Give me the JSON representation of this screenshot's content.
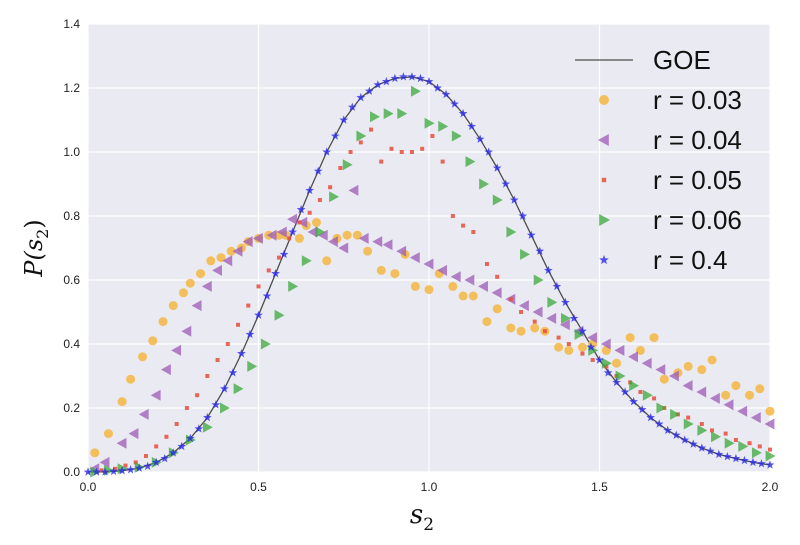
{
  "chart_data": {
    "type": "scatter",
    "xlabel_main": "s",
    "xlabel_sub": "2",
    "ylabel_main": "P(s",
    "ylabel_sub": "2",
    "ylabel_close": ")",
    "xlim": [
      0.0,
      2.0
    ],
    "ylim": [
      0.0,
      1.4
    ],
    "xticks": [
      "0.0",
      "0.5",
      "1.0",
      "1.5",
      "2.0"
    ],
    "yticks": [
      "0.0",
      "0.2",
      "0.4",
      "0.6",
      "0.8",
      "1.0",
      "1.2",
      "1.4"
    ],
    "grid": true,
    "legend_position": "top-right",
    "colors": {
      "background": "#eaeaf2",
      "grid": "#ffffff",
      "GOE": "#4d4d4d",
      "r003": "#f5b642",
      "r004": "#9b59b6",
      "r005": "#e74c3c",
      "r006": "#3aa83a",
      "r04": "#2a2ae8"
    },
    "series": [
      {
        "name": "GOE",
        "kind": "line",
        "color_key": "GOE",
        "x": [
          0.0,
          0.05,
          0.1,
          0.15,
          0.2,
          0.25,
          0.3,
          0.35,
          0.4,
          0.45,
          0.5,
          0.55,
          0.6,
          0.65,
          0.7,
          0.75,
          0.8,
          0.85,
          0.9,
          0.95,
          1.0,
          1.05,
          1.1,
          1.15,
          1.2,
          1.25,
          1.3,
          1.35,
          1.4,
          1.45,
          1.5,
          1.55,
          1.6,
          1.65,
          1.7,
          1.75,
          1.8,
          1.85,
          1.9,
          1.95,
          2.0
        ],
        "y": [
          0.0,
          0.0,
          0.004,
          0.012,
          0.03,
          0.06,
          0.105,
          0.17,
          0.26,
          0.37,
          0.49,
          0.62,
          0.75,
          0.88,
          1.0,
          1.1,
          1.17,
          1.21,
          1.23,
          1.235,
          1.22,
          1.18,
          1.12,
          1.04,
          0.95,
          0.85,
          0.74,
          0.63,
          0.53,
          0.44,
          0.35,
          0.28,
          0.22,
          0.17,
          0.13,
          0.1,
          0.075,
          0.055,
          0.042,
          0.03,
          0.022
        ]
      },
      {
        "name": "r = 0.03",
        "marker": "circle",
        "color_key": "r003",
        "x": [
          0.02,
          0.06,
          0.1,
          0.125,
          0.16,
          0.19,
          0.22,
          0.25,
          0.28,
          0.3,
          0.33,
          0.36,
          0.39,
          0.42,
          0.45,
          0.47,
          0.5,
          0.53,
          0.56,
          0.58,
          0.62,
          0.64,
          0.67,
          0.7,
          0.73,
          0.76,
          0.79,
          0.82,
          0.86,
          0.9,
          0.93,
          0.96,
          1.0,
          1.03,
          1.07,
          1.1,
          1.13,
          1.17,
          1.2,
          1.24,
          1.27,
          1.31,
          1.34,
          1.38,
          1.41,
          1.45,
          1.48,
          1.52,
          1.55,
          1.59,
          1.62,
          1.66,
          1.69,
          1.73,
          1.76,
          1.8,
          1.83,
          1.87,
          1.9,
          1.94,
          1.97,
          2.0
        ],
        "y": [
          0.06,
          0.12,
          0.22,
          0.29,
          0.36,
          0.41,
          0.47,
          0.52,
          0.56,
          0.59,
          0.62,
          0.66,
          0.67,
          0.69,
          0.7,
          0.72,
          0.73,
          0.74,
          0.74,
          0.74,
          0.73,
          0.77,
          0.78,
          0.66,
          0.73,
          0.74,
          0.74,
          0.69,
          0.63,
          0.62,
          0.68,
          0.58,
          0.57,
          0.62,
          0.58,
          0.55,
          0.55,
          0.47,
          0.51,
          0.45,
          0.44,
          0.45,
          0.44,
          0.39,
          0.38,
          0.39,
          0.4,
          0.38,
          0.34,
          0.42,
          0.38,
          0.42,
          0.29,
          0.31,
          0.33,
          0.32,
          0.35,
          0.24,
          0.27,
          0.24,
          0.26,
          0.19
        ]
      },
      {
        "name": "r = 0.04",
        "marker": "triangle-left",
        "color_key": "r004",
        "x": [
          0.02,
          0.05,
          0.1,
          0.135,
          0.165,
          0.2,
          0.23,
          0.26,
          0.29,
          0.32,
          0.35,
          0.38,
          0.41,
          0.44,
          0.47,
          0.5,
          0.54,
          0.57,
          0.6,
          0.63,
          0.66,
          0.69,
          0.72,
          0.75,
          0.78,
          0.81,
          0.85,
          0.88,
          0.92,
          0.96,
          1.0,
          1.04,
          1.08,
          1.12,
          1.16,
          1.2,
          1.24,
          1.28,
          1.32,
          1.36,
          1.4,
          1.44,
          1.48,
          1.52,
          1.56,
          1.6,
          1.64,
          1.68,
          1.72,
          1.76,
          1.8,
          1.84,
          1.88,
          1.92,
          1.96,
          2.0
        ],
        "y": [
          0.01,
          0.03,
          0.09,
          0.12,
          0.18,
          0.24,
          0.32,
          0.38,
          0.44,
          0.52,
          0.58,
          0.63,
          0.66,
          0.69,
          0.72,
          0.73,
          0.74,
          0.75,
          0.79,
          0.78,
          0.75,
          0.74,
          0.72,
          0.7,
          0.88,
          0.73,
          0.72,
          0.71,
          0.69,
          0.67,
          0.65,
          0.63,
          0.61,
          0.6,
          0.58,
          0.56,
          0.54,
          0.52,
          0.5,
          0.48,
          0.46,
          0.44,
          0.42,
          0.4,
          0.38,
          0.36,
          0.34,
          0.32,
          0.3,
          0.27,
          0.25,
          0.23,
          0.21,
          0.19,
          0.17,
          0.15
        ]
      },
      {
        "name": "r = 0.05",
        "marker": "square",
        "color_key": "r005",
        "x": [
          0.04,
          0.08,
          0.11,
          0.14,
          0.17,
          0.2,
          0.23,
          0.26,
          0.29,
          0.32,
          0.35,
          0.38,
          0.41,
          0.44,
          0.47,
          0.5,
          0.53,
          0.56,
          0.59,
          0.62,
          0.65,
          0.68,
          0.71,
          0.74,
          0.77,
          0.8,
          0.83,
          0.86,
          0.89,
          0.92,
          0.95,
          0.98,
          1.01,
          1.04,
          1.07,
          1.1,
          1.13,
          1.17,
          1.2,
          1.24,
          1.27,
          1.31,
          1.34,
          1.38,
          1.41,
          1.45,
          1.48,
          1.52,
          1.55,
          1.59,
          1.62,
          1.66,
          1.69,
          1.73,
          1.76,
          1.8,
          1.83,
          1.87,
          1.9,
          1.94,
          1.97,
          2.0
        ],
        "y": [
          0.005,
          0.01,
          0.02,
          0.03,
          0.05,
          0.08,
          0.11,
          0.15,
          0.2,
          0.24,
          0.3,
          0.35,
          0.4,
          0.46,
          0.52,
          0.58,
          0.63,
          0.67,
          0.73,
          0.78,
          0.81,
          0.85,
          0.89,
          0.95,
          1.0,
          1.03,
          1.07,
          0.97,
          1.01,
          1.0,
          1.0,
          1.01,
          1.05,
          0.97,
          0.8,
          0.77,
          0.75,
          0.65,
          0.61,
          0.54,
          0.5,
          0.47,
          0.44,
          0.42,
          0.4,
          0.37,
          0.35,
          0.33,
          0.3,
          0.28,
          0.25,
          0.23,
          0.2,
          0.18,
          0.17,
          0.15,
          0.13,
          0.12,
          0.1,
          0.09,
          0.08,
          0.07
        ]
      },
      {
        "name": "r = 0.06",
        "marker": "triangle-right",
        "color_key": "r006",
        "x": [
          0.02,
          0.06,
          0.1,
          0.15,
          0.2,
          0.25,
          0.3,
          0.35,
          0.4,
          0.44,
          0.48,
          0.52,
          0.56,
          0.6,
          0.64,
          0.68,
          0.72,
          0.76,
          0.8,
          0.84,
          0.88,
          0.92,
          0.96,
          1.0,
          1.04,
          1.08,
          1.12,
          1.16,
          1.2,
          1.24,
          1.28,
          1.32,
          1.36,
          1.4,
          1.44,
          1.48,
          1.52,
          1.56,
          1.6,
          1.64,
          1.68,
          1.72,
          1.76,
          1.8,
          1.84,
          1.88,
          1.92,
          1.96,
          2.0
        ],
        "y": [
          0.0,
          0.005,
          0.01,
          0.015,
          0.03,
          0.06,
          0.1,
          0.14,
          0.2,
          0.26,
          0.33,
          0.4,
          0.49,
          0.58,
          0.66,
          0.75,
          0.86,
          0.96,
          1.05,
          1.11,
          1.12,
          1.12,
          1.19,
          1.09,
          1.08,
          1.05,
          0.97,
          0.9,
          0.85,
          0.75,
          0.68,
          0.6,
          0.53,
          0.48,
          0.43,
          0.38,
          0.34,
          0.3,
          0.27,
          0.24,
          0.2,
          0.18,
          0.15,
          0.13,
          0.11,
          0.09,
          0.08,
          0.06,
          0.05
        ]
      },
      {
        "name": "r = 0.4",
        "marker": "star",
        "color_key": "r04",
        "x": [
          0.0,
          0.025,
          0.05,
          0.075,
          0.1,
          0.125,
          0.15,
          0.175,
          0.2,
          0.225,
          0.25,
          0.275,
          0.3,
          0.325,
          0.35,
          0.375,
          0.4,
          0.425,
          0.45,
          0.475,
          0.5,
          0.525,
          0.55,
          0.575,
          0.6,
          0.625,
          0.65,
          0.675,
          0.7,
          0.725,
          0.75,
          0.775,
          0.8,
          0.825,
          0.85,
          0.875,
          0.9,
          0.925,
          0.95,
          0.975,
          1.0,
          1.025,
          1.05,
          1.075,
          1.1,
          1.125,
          1.15,
          1.175,
          1.2,
          1.225,
          1.25,
          1.275,
          1.3,
          1.325,
          1.35,
          1.375,
          1.4,
          1.425,
          1.45,
          1.475,
          1.5,
          1.525,
          1.55,
          1.575,
          1.6,
          1.625,
          1.65,
          1.675,
          1.7,
          1.725,
          1.75,
          1.775,
          1.8,
          1.825,
          1.85,
          1.875,
          1.9,
          1.925,
          1.95,
          1.975,
          2.0
        ],
        "y": [
          0.0,
          0.0,
          0.0,
          0.002,
          0.004,
          0.007,
          0.012,
          0.018,
          0.03,
          0.042,
          0.06,
          0.08,
          0.105,
          0.135,
          0.17,
          0.21,
          0.26,
          0.31,
          0.37,
          0.43,
          0.49,
          0.55,
          0.62,
          0.68,
          0.75,
          0.82,
          0.88,
          0.94,
          1.0,
          1.05,
          1.1,
          1.14,
          1.17,
          1.19,
          1.21,
          1.22,
          1.23,
          1.235,
          1.235,
          1.23,
          1.22,
          1.2,
          1.18,
          1.15,
          1.12,
          1.08,
          1.04,
          1.0,
          0.95,
          0.9,
          0.85,
          0.8,
          0.74,
          0.69,
          0.63,
          0.58,
          0.53,
          0.48,
          0.44,
          0.39,
          0.35,
          0.31,
          0.28,
          0.25,
          0.22,
          0.195,
          0.17,
          0.15,
          0.13,
          0.115,
          0.1,
          0.087,
          0.075,
          0.065,
          0.055,
          0.048,
          0.042,
          0.036,
          0.03,
          0.026,
          0.022
        ]
      }
    ]
  }
}
